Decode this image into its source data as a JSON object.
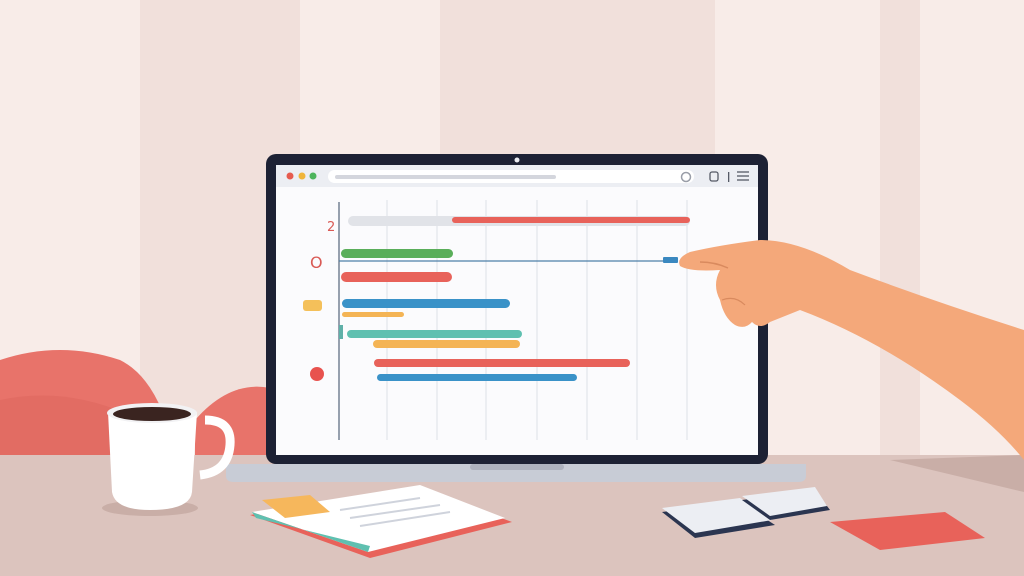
{
  "scene": {
    "description_colors": {
      "wall_light": "#f8ece8",
      "wall_dark": "#f0dfda",
      "desk": "#dcc4be",
      "hill": "#e8736a",
      "bezel": "#1d2134",
      "skin": "#f4a87a"
    }
  },
  "browser": {
    "window_buttons": [
      {
        "name": "close",
        "color": "#e65b4f"
      },
      {
        "name": "minimize",
        "color": "#f0b53a"
      },
      {
        "name": "maximize",
        "color": "#4cb45c"
      }
    ],
    "icons": [
      "refresh-icon",
      "share-icon",
      "menu-icon"
    ]
  },
  "gantt": {
    "row_labels": [
      "2",
      "O"
    ],
    "bars": [
      {
        "color": "#e1e3e8"
      },
      {
        "color": "#e8625a"
      },
      {
        "color": "#5aae5a"
      },
      {
        "color": "#e8625a"
      },
      {
        "color": "#3a92c8"
      },
      {
        "color": "#f4b455"
      },
      {
        "color": "#5fc0b0"
      },
      {
        "color": "#f4b455"
      },
      {
        "color": "#e8625a"
      },
      {
        "color": "#3a92c8"
      }
    ]
  }
}
